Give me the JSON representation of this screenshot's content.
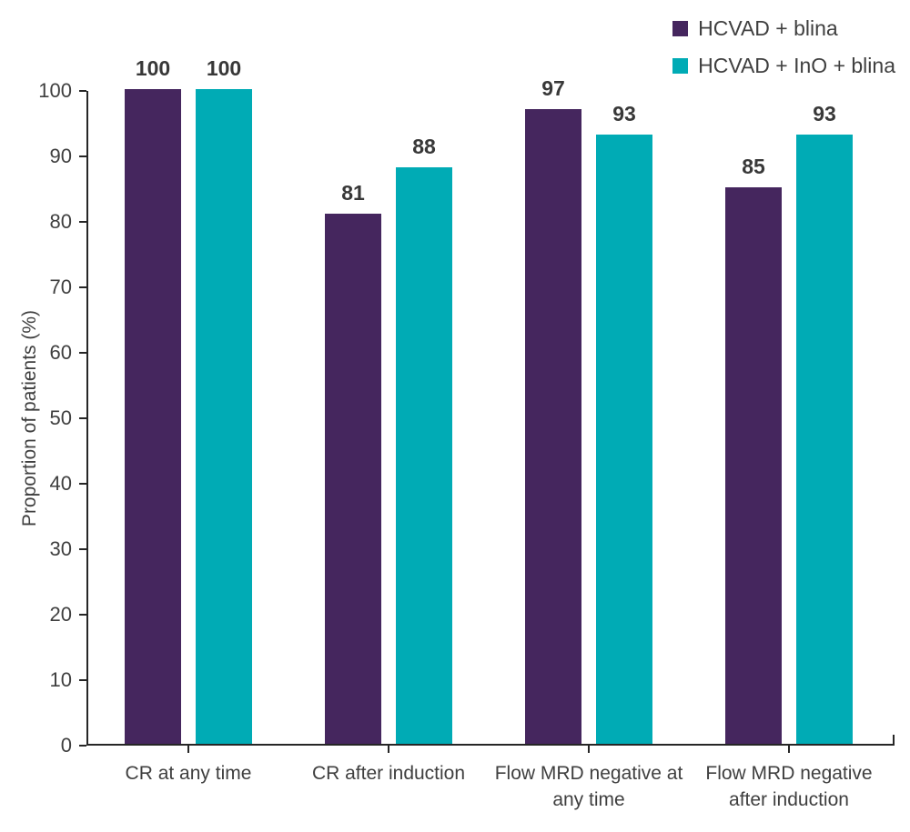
{
  "chart_data": {
    "type": "bar",
    "title": "",
    "categories": [
      "CR at any time",
      "CR after induction",
      "Flow MRD negative at any time",
      "Flow MRD negative after induction"
    ],
    "series": [
      {
        "name": "HCVAD + blina",
        "color": "#45265E",
        "values": [
          100,
          81,
          97,
          85
        ]
      },
      {
        "name": "HCVAD + InO + blina",
        "color": "#00ABB5",
        "values": [
          100,
          88,
          93,
          93
        ]
      }
    ],
    "xlabel": "",
    "ylabel": "Proportion of patients (%)",
    "ylim": [
      0,
      100
    ],
    "yticks": [
      0,
      10,
      20,
      30,
      40,
      50,
      60,
      70,
      80,
      90,
      100
    ],
    "grid": false,
    "legend_position": "top-right",
    "value_labels": true,
    "colors": {
      "axis": "#262626",
      "text": "#3f3f3f",
      "value_label": "#383838",
      "background": "#ffffff"
    }
  }
}
